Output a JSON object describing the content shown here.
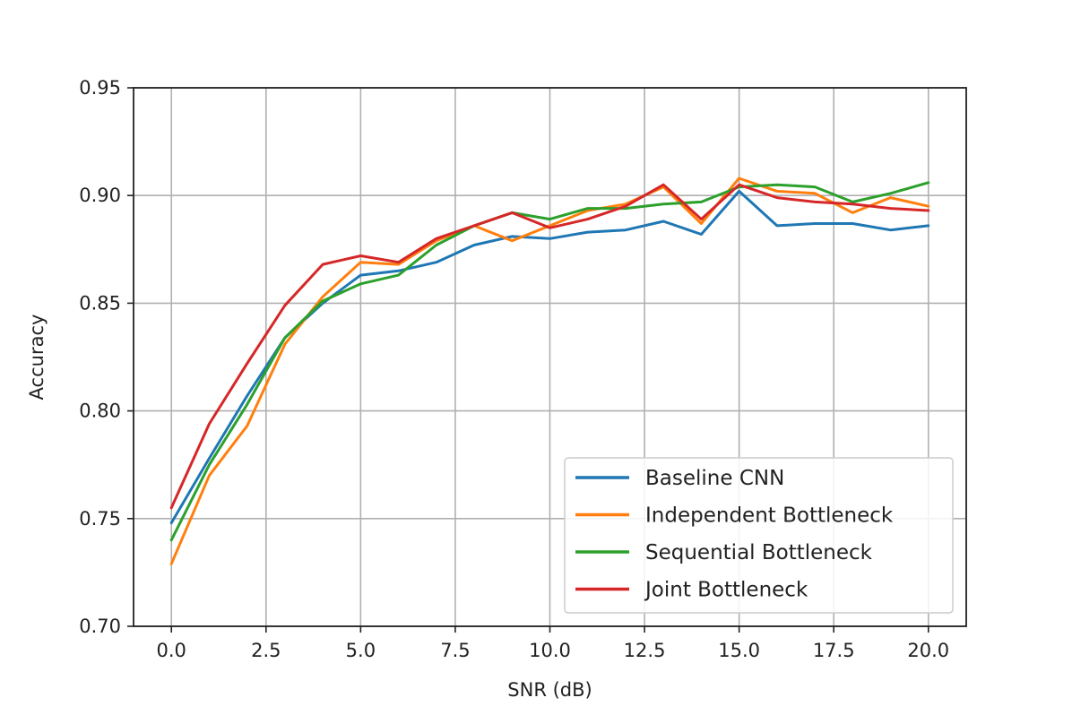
{
  "chart_data": {
    "type": "line",
    "title": "",
    "xlabel": "SNR (dB)",
    "ylabel": "Accuracy",
    "xlim": [
      -1,
      21
    ],
    "ylim": [
      0.7,
      0.95
    ],
    "xticks": [
      0.0,
      2.5,
      5.0,
      7.5,
      10.0,
      12.5,
      15.0,
      17.5,
      20.0
    ],
    "xtick_labels": [
      "0.0",
      "2.5",
      "5.0",
      "7.5",
      "10.0",
      "12.5",
      "15.0",
      "17.5",
      "20.0"
    ],
    "yticks": [
      0.7,
      0.75,
      0.8,
      0.85,
      0.9,
      0.95
    ],
    "ytick_labels": [
      "0.70",
      "0.75",
      "0.80",
      "0.85",
      "0.90",
      "0.95"
    ],
    "grid": true,
    "legend_position": "lower-right",
    "x": [
      0,
      1,
      2,
      3,
      4,
      5,
      6,
      7,
      8,
      9,
      10,
      11,
      12,
      13,
      14,
      15,
      16,
      17,
      18,
      19,
      20
    ],
    "series": [
      {
        "name": "Baseline CNN",
        "color": "#1f77b4",
        "values": [
          0.748,
          0.778,
          0.807,
          0.834,
          0.85,
          0.863,
          0.865,
          0.869,
          0.877,
          0.881,
          0.88,
          0.883,
          0.884,
          0.888,
          0.882,
          0.902,
          0.886,
          0.887,
          0.887,
          0.884,
          0.886
        ]
      },
      {
        "name": "Independent Bottleneck",
        "color": "#ff7f0e",
        "values": [
          0.729,
          0.77,
          0.793,
          0.831,
          0.853,
          0.869,
          0.868,
          0.879,
          0.886,
          0.879,
          0.886,
          0.893,
          0.896,
          0.904,
          0.887,
          0.908,
          0.902,
          0.901,
          0.892,
          0.899,
          0.895
        ]
      },
      {
        "name": "Sequential Bottleneck",
        "color": "#2ca02c",
        "values": [
          0.74,
          0.775,
          0.803,
          0.834,
          0.851,
          0.859,
          0.863,
          0.877,
          0.886,
          0.892,
          0.889,
          0.894,
          0.894,
          0.896,
          0.897,
          0.904,
          0.905,
          0.904,
          0.897,
          0.901,
          0.906
        ]
      },
      {
        "name": "Joint Bottleneck",
        "color": "#d62728",
        "values": [
          0.755,
          0.794,
          0.822,
          0.849,
          0.868,
          0.872,
          0.869,
          0.88,
          0.886,
          0.892,
          0.885,
          0.889,
          0.895,
          0.905,
          0.889,
          0.905,
          0.899,
          0.897,
          0.896,
          0.894,
          0.893
        ]
      }
    ]
  }
}
